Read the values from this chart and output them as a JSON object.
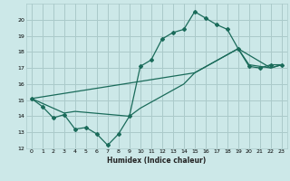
{
  "xlabel": "Humidex (Indice chaleur)",
  "bg_color": "#cce8e8",
  "grid_color": "#aacaca",
  "line_color": "#1a6b5a",
  "xlim": [
    -0.5,
    23.5
  ],
  "ylim": [
    12,
    21
  ],
  "yticks": [
    12,
    13,
    14,
    15,
    16,
    17,
    18,
    19,
    20
  ],
  "xticks": [
    0,
    1,
    2,
    3,
    4,
    5,
    6,
    7,
    8,
    9,
    10,
    11,
    12,
    13,
    14,
    15,
    16,
    17,
    18,
    19,
    20,
    21,
    22,
    23
  ],
  "line1_x": [
    0,
    1,
    2,
    3,
    4,
    5,
    6,
    7,
    8,
    9,
    10,
    11,
    12,
    13,
    14,
    15,
    16,
    17,
    18,
    19,
    20,
    21,
    22,
    23
  ],
  "line1_y": [
    15.1,
    14.6,
    13.9,
    14.1,
    13.2,
    13.3,
    12.9,
    12.2,
    12.9,
    14.0,
    17.1,
    17.5,
    18.8,
    19.2,
    19.4,
    20.5,
    20.1,
    19.7,
    19.4,
    18.2,
    17.1,
    17.0,
    17.2,
    17.2
  ],
  "line2_x": [
    0,
    3,
    4,
    9,
    10,
    14,
    15,
    19,
    20,
    22,
    23
  ],
  "line2_y": [
    15.1,
    14.2,
    14.3,
    14.0,
    14.5,
    16.0,
    16.7,
    18.2,
    17.2,
    17.0,
    17.2
  ],
  "line3_x": [
    0,
    15,
    19,
    22,
    23
  ],
  "line3_y": [
    15.1,
    16.7,
    18.2,
    17.0,
    17.2
  ]
}
